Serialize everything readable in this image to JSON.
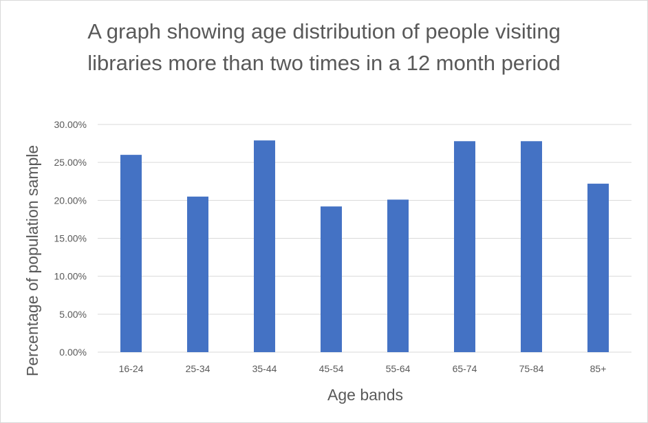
{
  "chart_data": {
    "type": "bar",
    "title": "A graph showing age distribution of people visiting libraries more than two times in a 12 month period",
    "xlabel": "Age bands",
    "ylabel": "Percentage of population sample",
    "categories": [
      "16-24",
      "25-34",
      "35-44",
      "45-54",
      "55-64",
      "65-74",
      "75-84",
      "85+"
    ],
    "values": [
      26.0,
      20.5,
      27.9,
      19.2,
      20.1,
      27.8,
      27.8,
      22.2
    ],
    "ylim": [
      0,
      30
    ],
    "y_ticks": [
      "0.00%",
      "5.00%",
      "10.00%",
      "15.00%",
      "20.00%",
      "25.00%",
      "30.00%"
    ],
    "grid": true,
    "legend": "none",
    "bar_color": "#4472c4",
    "grid_color": "#d9d9d9",
    "text_color": "#595959"
  }
}
